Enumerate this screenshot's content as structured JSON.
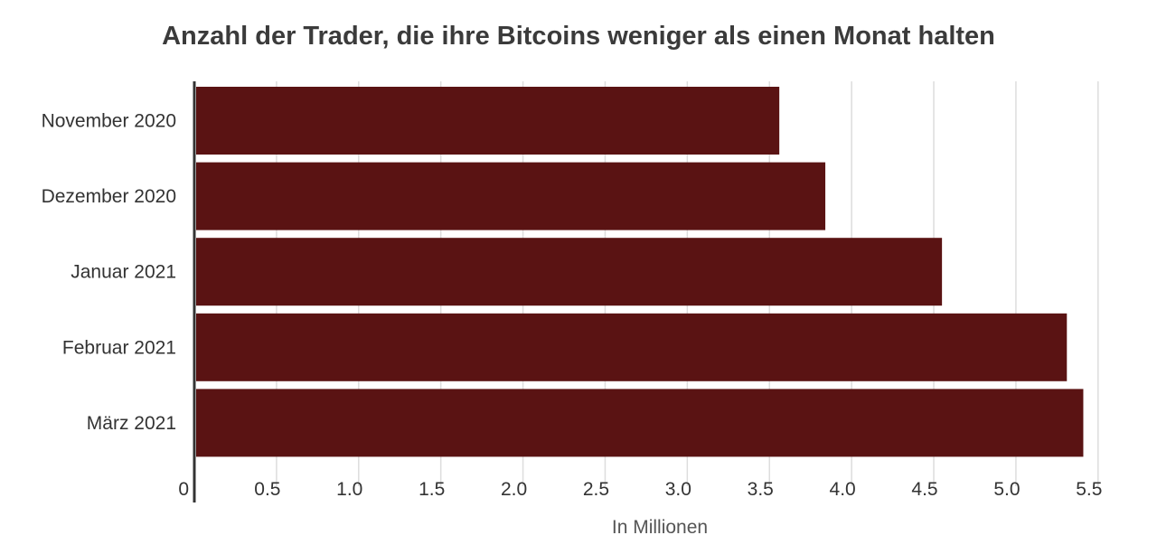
{
  "chart_data": {
    "type": "bar",
    "orientation": "horizontal",
    "title": "Anzahl der Trader, die ihre Bitcoins weniger als einen Monat halten",
    "xlabel": "In Millionen",
    "ylabel": "",
    "categories": [
      "November 2020",
      "Dezember 2020",
      "Januar 2021",
      "Februar 2021",
      "März 2021"
    ],
    "values": [
      3.56,
      3.84,
      4.55,
      5.31,
      5.41
    ],
    "xlim": [
      0,
      5.6
    ],
    "xticks": [
      "0",
      "0.5",
      "1.0",
      "1.5",
      "2.0",
      "2.5",
      "3.0",
      "3.5",
      "4.0",
      "4.5",
      "5.0",
      "5.5"
    ],
    "grid": true,
    "legend": "none",
    "colors": {
      "bar": "#5a1313",
      "grid": "#dddddd",
      "axis": "#333333"
    }
  }
}
